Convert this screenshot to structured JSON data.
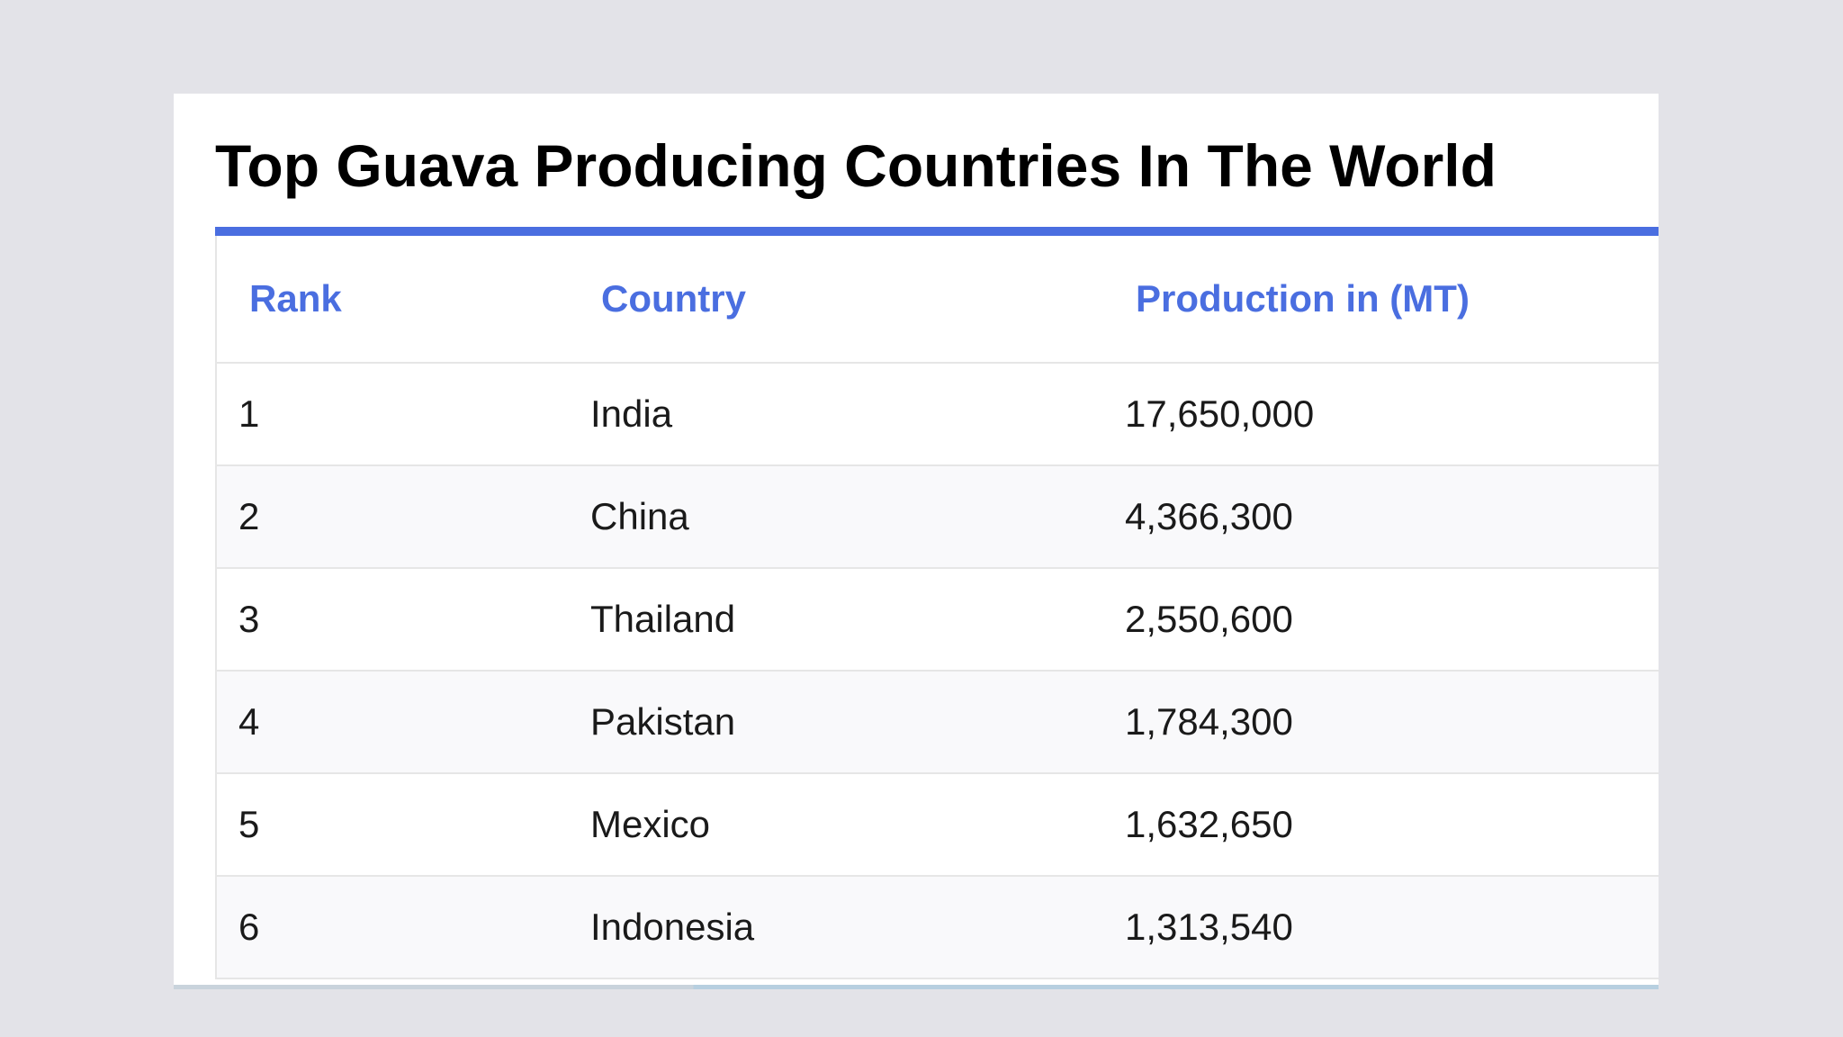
{
  "title": "Top Guava Producing Countries In The World",
  "colors": {
    "accent": "#4a6ee0",
    "header_text": "#4a6ee0",
    "background": "#e3e3e8"
  },
  "table": {
    "headers": {
      "rank": "Rank",
      "country": "Country",
      "production": "Production in (MT)"
    },
    "rows": [
      {
        "rank": "1",
        "country": "India",
        "production": "17,650,000"
      },
      {
        "rank": "2",
        "country": "China",
        "production": "4,366,300"
      },
      {
        "rank": "3",
        "country": "Thailand",
        "production": "2,550,600"
      },
      {
        "rank": "4",
        "country": "Pakistan",
        "production": "1,784,300"
      },
      {
        "rank": "5",
        "country": "Mexico",
        "production": "1,632,650"
      },
      {
        "rank": "6",
        "country": "Indonesia",
        "production": "1,313,540"
      }
    ]
  }
}
